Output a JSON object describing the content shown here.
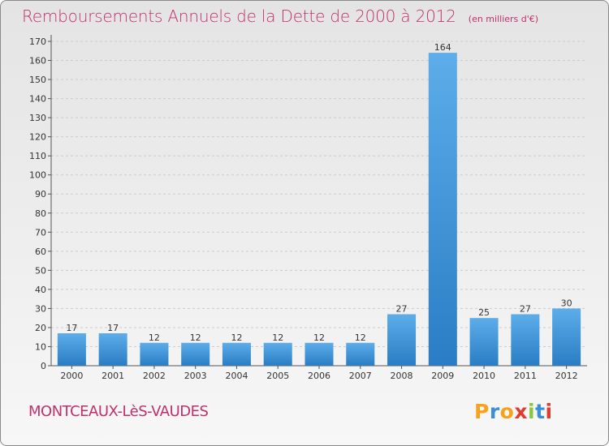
{
  "header": {
    "title": "Remboursements Annuels de la Dette de 2000 à 2012",
    "unit": "(en milliers d'€)"
  },
  "footer": {
    "commune": "MONTCEAUX-LèS-VAUDES",
    "logo": {
      "p": "P",
      "r": "r",
      "o": "o",
      "x": "x",
      "i": "i",
      "t": "t",
      "i2": "i"
    }
  },
  "colors": {
    "title": "#c0306a",
    "bar_top": "#5dadea",
    "bar_bottom": "#2a7dc4",
    "grid": "#cccccc"
  },
  "chart_data": {
    "type": "bar",
    "title": "Remboursements Annuels de la Dette de 2000 à 2012",
    "xlabel": "",
    "ylabel": "",
    "categories": [
      "2000",
      "2001",
      "2002",
      "2003",
      "2004",
      "2005",
      "2006",
      "2007",
      "2008",
      "2009",
      "2010",
      "2011",
      "2012"
    ],
    "values": [
      17,
      17,
      12,
      12,
      12,
      12,
      12,
      12,
      27,
      164,
      25,
      27,
      30
    ],
    "ylim": [
      0,
      170
    ],
    "yticks": [
      0,
      10,
      20,
      30,
      40,
      50,
      60,
      70,
      80,
      90,
      100,
      110,
      120,
      130,
      140,
      150,
      160,
      170
    ],
    "grid": true,
    "data_labels": true
  }
}
